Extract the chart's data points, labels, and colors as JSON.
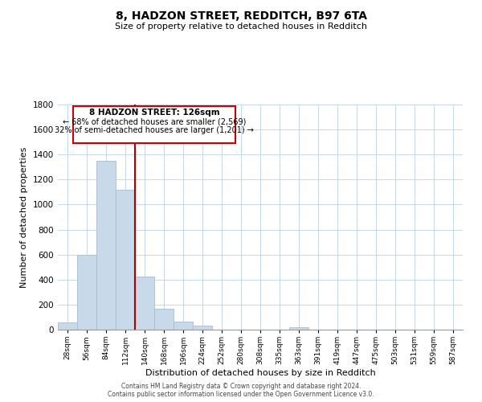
{
  "title": "8, HADZON STREET, REDDITCH, B97 6TA",
  "subtitle": "Size of property relative to detached houses in Redditch",
  "xlabel": "Distribution of detached houses by size in Redditch",
  "ylabel": "Number of detached properties",
  "bin_labels": [
    "28sqm",
    "56sqm",
    "84sqm",
    "112sqm",
    "140sqm",
    "168sqm",
    "196sqm",
    "224sqm",
    "252sqm",
    "280sqm",
    "308sqm",
    "335sqm",
    "363sqm",
    "391sqm",
    "419sqm",
    "447sqm",
    "475sqm",
    "503sqm",
    "531sqm",
    "559sqm",
    "587sqm"
  ],
  "bar_values": [
    60,
    595,
    1350,
    1120,
    425,
    170,
    62,
    35,
    0,
    0,
    0,
    0,
    20,
    0,
    0,
    0,
    0,
    0,
    0,
    0,
    0
  ],
  "bar_color": "#c8daea",
  "bar_edge_color": "#aabcce",
  "property_line_label": "8 HADZON STREET: 126sqm",
  "annotation_line1": "← 68% of detached houses are smaller (2,569)",
  "annotation_line2": "32% of semi-detached houses are larger (1,201) →",
  "box_color": "#ffffff",
  "box_edge_color": "#cc0000",
  "line_color": "#aa0000",
  "ylim": [
    0,
    1800
  ],
  "yticks": [
    0,
    200,
    400,
    600,
    800,
    1000,
    1200,
    1400,
    1600,
    1800
  ],
  "footer_line1": "Contains HM Land Registry data © Crown copyright and database right 2024.",
  "footer_line2": "Contains public sector information licensed under the Open Government Licence v3.0.",
  "background_color": "#ffffff",
  "grid_color": "#c8d8e8"
}
